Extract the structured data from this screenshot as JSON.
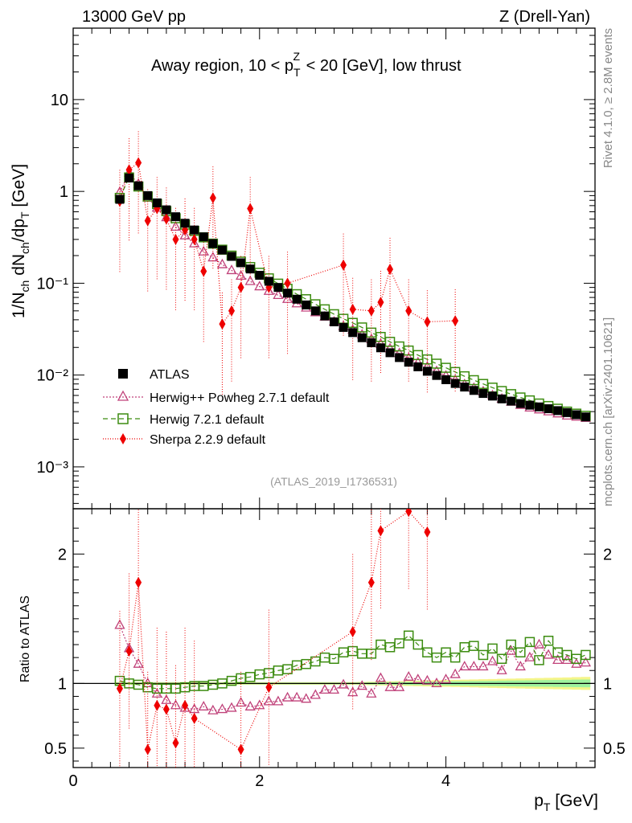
{
  "header": {
    "energy": "13000 GeV pp",
    "process": "Z (Drell-Yan)"
  },
  "side_labels": {
    "rivet": "Rivet 4.1.0, ≥ 2.8M events",
    "mcplots": "mcplots.cern.ch [arXiv:2401.10621]"
  },
  "chart_data": [
    {
      "type": "scatter",
      "title": "Away region, 10 < pTZ < 20 [GeV], low thrust",
      "analysis": "(ATLAS_2019_I1736531)",
      "xlabel": "p_T [GeV]",
      "ylabel": "1/N_ch dN_ch/dp_T [GeV]",
      "yscale": "log",
      "xlim": [
        0,
        5.6
      ],
      "ylim": [
        0.00035,
        60
      ],
      "y_tick_labels": [
        "10⁻³",
        "10⁻²",
        "10⁻¹",
        "1",
        "10"
      ],
      "legend": [
        "ATLAS",
        "Herwig++ Powheg 2.7.1 default",
        "Herwig 7.2.1 default",
        "Sherpa 2.2.9 default"
      ],
      "x": [
        0.5,
        0.6,
        0.7,
        0.8,
        0.9,
        1.0,
        1.1,
        1.2,
        1.3,
        1.4,
        1.5,
        1.6,
        1.7,
        1.8,
        1.9,
        2.0,
        2.1,
        2.2,
        2.3,
        2.4,
        2.5,
        2.6,
        2.7,
        2.8,
        2.9,
        3.0,
        3.1,
        3.2,
        3.3,
        3.4,
        3.5,
        3.6,
        3.7,
        3.8,
        3.9,
        4.0,
        4.1,
        4.2,
        4.3,
        4.4,
        4.5,
        4.6,
        4.7,
        4.8,
        4.9,
        5.0,
        5.1,
        5.2,
        5.3,
        5.4,
        5.5
      ],
      "series": [
        {
          "name": "ATLAS",
          "values": [
            0.82,
            1.4,
            1.15,
            0.9,
            0.75,
            0.63,
            0.53,
            0.45,
            0.38,
            0.32,
            0.27,
            0.23,
            0.196,
            0.167,
            0.143,
            0.122,
            0.105,
            0.09,
            0.078,
            0.067,
            0.058,
            0.05,
            0.044,
            0.038,
            0.033,
            0.029,
            0.0255,
            0.0225,
            0.0198,
            0.0175,
            0.0155,
            0.0138,
            0.0123,
            0.011,
            0.0099,
            0.0089,
            0.0081,
            0.0074,
            0.0068,
            0.0063,
            0.0059,
            0.0055,
            0.0052,
            0.0049,
            0.0047,
            0.0045,
            0.0043,
            0.0041,
            0.0039,
            0.0037,
            0.0035
          ]
        },
        {
          "name": "Herwig++ Powheg 2.7.1 default",
          "values": [
            0.98,
            1.6,
            1.2,
            0.85,
            0.66,
            0.52,
            0.41,
            0.33,
            0.27,
            0.22,
            0.19,
            0.16,
            0.138,
            0.12,
            0.105,
            0.092,
            0.082,
            0.074,
            0.067,
            0.06,
            0.054,
            0.048,
            0.043,
            0.038,
            0.034,
            0.031,
            0.0275,
            0.0245,
            0.0218,
            0.0194,
            0.0172,
            0.0153,
            0.0137,
            0.0123,
            0.011,
            0.0098,
            0.0088,
            0.0079,
            0.0072,
            0.0066,
            0.006,
            0.0055,
            0.0051,
            0.0047,
            0.0044,
            0.0042,
            0.004,
            0.0038,
            0.0036,
            0.0035,
            0.0034
          ]
        },
        {
          "name": "Herwig 7.2.1 default",
          "values": [
            0.85,
            1.42,
            1.13,
            0.88,
            0.73,
            0.61,
            0.51,
            0.435,
            0.372,
            0.316,
            0.27,
            0.232,
            0.2,
            0.172,
            0.15,
            0.13,
            0.113,
            0.099,
            0.087,
            0.076,
            0.067,
            0.059,
            0.052,
            0.046,
            0.041,
            0.037,
            0.033,
            0.029,
            0.026,
            0.023,
            0.0205,
            0.0185,
            0.0165,
            0.0148,
            0.0133,
            0.012,
            0.0108,
            0.0097,
            0.0088,
            0.008,
            0.0073,
            0.0067,
            0.0062,
            0.0057,
            0.0053,
            0.0049,
            0.0046,
            0.0043,
            0.004,
            0.0038,
            0.0036
          ]
        },
        {
          "name": "Sherpa 2.2.9 default",
          "x": [
            0.5,
            0.6,
            0.7,
            0.8,
            0.9,
            1.0,
            1.1,
            1.2,
            1.3,
            1.4,
            1.5,
            1.6,
            1.7,
            1.8,
            1.9,
            2.1,
            2.3,
            2.9,
            3.0,
            3.2,
            3.3,
            3.4,
            3.6,
            3.8,
            4.1
          ],
          "values": [
            0.78,
            1.72,
            2.05,
            0.48,
            0.65,
            0.5,
            0.3,
            0.38,
            0.3,
            0.135,
            0.85,
            0.036,
            0.05,
            0.09,
            0.65,
            0.09,
            0.1,
            0.158,
            0.052,
            0.05,
            0.062,
            0.142,
            0.05,
            0.038,
            0.039
          ]
        }
      ]
    },
    {
      "type": "scatter",
      "xlabel": "p_T [GeV]",
      "ylabel": "Ratio to ATLAS",
      "xlim": [
        0,
        5.6
      ],
      "ylim": [
        0.35,
        2.35
      ],
      "x_tick_labels": [
        "0",
        "2",
        "4"
      ],
      "y_tick_labels": [
        "0.5",
        "1",
        "2"
      ],
      "x": [
        0.5,
        0.6,
        0.7,
        0.8,
        0.9,
        1.0,
        1.1,
        1.2,
        1.3,
        1.4,
        1.5,
        1.6,
        1.7,
        1.8,
        1.9,
        2.0,
        2.1,
        2.2,
        2.3,
        2.4,
        2.5,
        2.6,
        2.7,
        2.8,
        2.9,
        3.0,
        3.1,
        3.2,
        3.3,
        3.4,
        3.5,
        3.6,
        3.7,
        3.8,
        3.9,
        4.0,
        4.1,
        4.2,
        4.3,
        4.4,
        4.5,
        4.6,
        4.7,
        4.8,
        4.9,
        5.0,
        5.1,
        5.2,
        5.3,
        5.4,
        5.5
      ],
      "series": [
        {
          "name": "Herwig++ Powheg 2.7.1 default",
          "values": [
            1.45,
            1.27,
            1.15,
            1.0,
            0.92,
            0.87,
            0.83,
            0.81,
            0.8,
            0.82,
            0.79,
            0.8,
            0.81,
            0.85,
            0.82,
            0.83,
            0.86,
            0.86,
            0.89,
            0.89,
            0.88,
            0.91,
            0.95,
            0.95,
            0.99,
            0.93,
            0.98,
            0.92,
            1.04,
            0.97,
            0.97,
            1.05,
            1.03,
            1.02,
            1.0,
            1.03,
            1.07,
            1.13,
            1.13,
            1.13,
            1.17,
            1.1,
            1.25,
            1.13,
            1.2,
            1.3,
            1.22,
            1.18,
            1.18,
            1.15,
            1.16
          ]
        },
        {
          "name": "Herwig 7.2.1 default",
          "values": [
            1.02,
            1.0,
            0.99,
            0.97,
            0.96,
            0.96,
            0.96,
            0.97,
            0.98,
            0.98,
            0.99,
            1.0,
            1.02,
            1.04,
            1.05,
            1.07,
            1.08,
            1.1,
            1.11,
            1.14,
            1.15,
            1.17,
            1.2,
            1.19,
            1.24,
            1.25,
            1.23,
            1.23,
            1.3,
            1.28,
            1.31,
            1.37,
            1.3,
            1.24,
            1.2,
            1.24,
            1.2,
            1.28,
            1.29,
            1.22,
            1.27,
            1.19,
            1.3,
            1.24,
            1.32,
            1.18,
            1.33,
            1.24,
            1.22,
            1.19,
            1.22
          ]
        },
        {
          "name": "Sherpa 2.2.9 default",
          "x": [
            0.5,
            0.6,
            0.7,
            0.8,
            0.9,
            1.0,
            1.1,
            1.2,
            1.3,
            1.8,
            2.1,
            3.0,
            3.2,
            3.3,
            3.6,
            3.8
          ],
          "values": [
            0.96,
            1.25,
            1.78,
            0.49,
            0.83,
            0.8,
            0.54,
            0.83,
            0.73,
            0.49,
            0.97,
            1.4,
            1.78,
            2.18,
            2.33,
            2.17
          ]
        }
      ]
    }
  ]
}
